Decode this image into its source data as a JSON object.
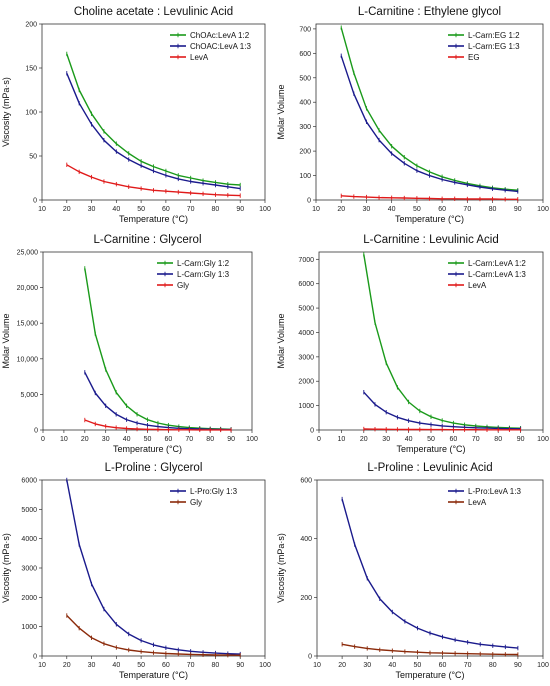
{
  "chart_data": [
    {
      "type": "line",
      "title": "Choline acetate : Levulinic Acid",
      "xlabel": "Temperature (°C)",
      "ylabel": "Viscosity (mPa·s)",
      "xlim": [
        10,
        100
      ],
      "ylim": [
        0,
        200
      ],
      "xticks": [
        10,
        20,
        30,
        40,
        50,
        60,
        70,
        80,
        90,
        100
      ],
      "yticks": [
        0,
        50,
        100,
        150,
        200
      ],
      "ytick_labels": [
        "0",
        "50",
        "100",
        "150",
        "200"
      ],
      "legend_position": "top-right",
      "x": [
        20,
        25,
        30,
        35,
        40,
        45,
        50,
        55,
        60,
        65,
        70,
        75,
        80,
        85,
        90
      ],
      "series": [
        {
          "name": "ChOAc:LevA 1:2",
          "color": "#1a9a1a",
          "values": [
            166,
            125,
            98,
            78,
            64,
            53,
            44,
            38,
            33,
            28,
            25,
            22,
            20,
            18,
            17
          ]
        },
        {
          "name": "ChOAC:LevA 1:3",
          "color": "#1a1a8c",
          "values": [
            144,
            110,
            86,
            68,
            55,
            46,
            39,
            33,
            28,
            24,
            21,
            19,
            17,
            15,
            13
          ]
        },
        {
          "name": "LevA",
          "color": "#e01a1a",
          "values": [
            40,
            32,
            26,
            21,
            18,
            15,
            13,
            11,
            10,
            9,
            8,
            7,
            6,
            5.5,
            5
          ]
        }
      ]
    },
    {
      "type": "line",
      "title": "L-Carnitine : Ethylene glycol",
      "xlabel": "Temperature (°C)",
      "ylabel": "Molar Volume",
      "xlim": [
        10,
        100
      ],
      "ylim": [
        0,
        720
      ],
      "xticks": [
        10,
        20,
        30,
        40,
        50,
        60,
        70,
        80,
        90,
        100
      ],
      "yticks": [
        0,
        100,
        200,
        300,
        400,
        500,
        600,
        700
      ],
      "ytick_labels": [
        "0",
        "100",
        "200",
        "300",
        "400",
        "500",
        "600",
        "700"
      ],
      "legend_position": "top-right",
      "x": [
        20,
        25,
        30,
        35,
        40,
        45,
        50,
        55,
        60,
        65,
        70,
        75,
        80,
        85,
        90
      ],
      "series": [
        {
          "name": "L-Carn:EG 1:2",
          "color": "#1a9a1a",
          "values": [
            705,
            520,
            375,
            285,
            220,
            175,
            140,
            115,
            95,
            80,
            68,
            58,
            50,
            44,
            40
          ]
        },
        {
          "name": "L-Carn:EG 1:3",
          "color": "#1a1a8c",
          "values": [
            590,
            435,
            320,
            245,
            190,
            150,
            120,
            100,
            84,
            72,
            62,
            53,
            46,
            40,
            35
          ]
        },
        {
          "name": "EG",
          "color": "#e01a1a",
          "values": [
            17,
            14,
            12,
            10,
            9,
            8,
            7,
            6,
            5,
            5,
            4,
            4,
            4,
            3,
            3
          ]
        }
      ]
    },
    {
      "type": "line",
      "title": "L-Carnitine : Glycerol",
      "xlabel": "Temperature (°C)",
      "ylabel": "Molar Volume",
      "xlim": [
        0,
        100
      ],
      "ylim": [
        0,
        25000
      ],
      "xticks": [
        0,
        10,
        20,
        30,
        40,
        50,
        60,
        70,
        80,
        90,
        100
      ],
      "yticks": [
        0,
        5000,
        10000,
        15000,
        20000,
        25000
      ],
      "ytick_labels": [
        "0",
        "5,000",
        "10,000",
        "15,000",
        "20,000",
        "25,000"
      ],
      "legend_position": "top-right",
      "x": [
        20,
        25,
        30,
        35,
        40,
        45,
        50,
        55,
        60,
        65,
        70,
        75,
        80,
        85,
        90
      ],
      "series": [
        {
          "name": "L-Carn:Gly 1:2",
          "color": "#1a9a1a",
          "values": [
            22700,
            13500,
            8500,
            5300,
            3400,
            2200,
            1450,
            980,
            680,
            480,
            340,
            250,
            185,
            140,
            105
          ]
        },
        {
          "name": "L-Carn:Gly 1:3",
          "color": "#1a1a8c",
          "values": [
            8100,
            5200,
            3400,
            2200,
            1450,
            980,
            680,
            480,
            340,
            245,
            180,
            135,
            100,
            78,
            60
          ]
        },
        {
          "name": "Gly",
          "color": "#e01a1a",
          "values": [
            1400,
            850,
            520,
            330,
            210,
            140,
            95,
            65,
            45,
            32,
            24,
            18,
            13,
            10,
            8
          ]
        }
      ]
    },
    {
      "type": "line",
      "title": "L-Carnitine : Levulinic Acid",
      "xlabel": "Temperature (°C)",
      "ylabel": "Molar Volume",
      "xlim": [
        0,
        100
      ],
      "ylim": [
        0,
        7300
      ],
      "xticks": [
        0,
        10,
        20,
        30,
        40,
        50,
        60,
        70,
        80,
        90,
        100
      ],
      "yticks": [
        0,
        1000,
        2000,
        3000,
        4000,
        5000,
        6000,
        7000
      ],
      "ytick_labels": [
        "0",
        "1000",
        "2000",
        "3000",
        "4000",
        "5000",
        "6000",
        "7000"
      ],
      "legend_position": "top-right",
      "x": [
        20,
        25,
        30,
        35,
        40,
        45,
        50,
        55,
        60,
        65,
        70,
        75,
        80,
        85,
        90
      ],
      "series": [
        {
          "name": "L-Carn:LevA 1:2",
          "color": "#1a9a1a",
          "values": [
            7200,
            4400,
            2750,
            1750,
            1150,
            780,
            540,
            390,
            285,
            215,
            165,
            130,
            105,
            88,
            75
          ]
        },
        {
          "name": "L-Carn:LevA 1:3",
          "color": "#1a1a8c",
          "values": [
            1550,
            1050,
            730,
            520,
            380,
            285,
            220,
            170,
            135,
            110,
            90,
            76,
            64,
            55,
            48
          ]
        },
        {
          "name": "LevA",
          "color": "#e01a1a",
          "values": [
            40,
            34,
            29,
            25,
            22,
            19,
            17,
            15,
            13,
            12,
            11,
            10,
            9,
            8,
            7
          ]
        }
      ]
    },
    {
      "type": "line",
      "title": "L-Proline : Glycerol",
      "xlabel": "Temperature (°C)",
      "ylabel": "Viscosity (mPa·s)",
      "xlim": [
        10,
        100
      ],
      "ylim": [
        0,
        6000
      ],
      "xticks": [
        10,
        20,
        30,
        40,
        50,
        60,
        70,
        80,
        90,
        100
      ],
      "yticks": [
        0,
        1000,
        2000,
        3000,
        4000,
        5000,
        6000
      ],
      "ytick_labels": [
        "0",
        "1000",
        "2000",
        "3000",
        "4000",
        "5000",
        "6000"
      ],
      "legend_position": "top-right",
      "x": [
        20,
        25,
        30,
        35,
        40,
        45,
        50,
        55,
        60,
        65,
        70,
        75,
        80,
        85,
        90
      ],
      "series": [
        {
          "name": "L-Pro:Gly 1:3",
          "color": "#1a1a8c",
          "values": [
            6000,
            3800,
            2450,
            1600,
            1080,
            750,
            530,
            380,
            280,
            210,
            160,
            125,
            100,
            80,
            65
          ]
        },
        {
          "name": "Gly",
          "color": "#8b2a0a",
          "values": [
            1380,
            950,
            620,
            420,
            290,
            205,
            150,
            112,
            86,
            67,
            53,
            43,
            35,
            29,
            25
          ]
        }
      ]
    },
    {
      "type": "line",
      "title": "L-Proline : Levulinic Acid",
      "xlabel": "Temperature (°C)",
      "ylabel": "Viscosity (mPa·s)",
      "xlim": [
        10,
        100
      ],
      "ylim": [
        0,
        600
      ],
      "xticks": [
        10,
        20,
        30,
        40,
        50,
        60,
        70,
        80,
        90,
        100
      ],
      "yticks": [
        0,
        200,
        400,
        600
      ],
      "ytick_labels": [
        "0",
        "200",
        "400",
        "600"
      ],
      "legend_position": "top-right",
      "x": [
        20,
        25,
        30,
        35,
        40,
        45,
        50,
        55,
        60,
        65,
        70,
        75,
        80,
        85,
        90
      ],
      "series": [
        {
          "name": "L-Pro:LevA 1:3",
          "color": "#1a1a8c",
          "values": [
            535,
            380,
            265,
            195,
            150,
            118,
            95,
            78,
            65,
            55,
            47,
            40,
            35,
            31,
            27
          ]
        },
        {
          "name": "LevA",
          "color": "#8b2a0a",
          "values": [
            40,
            32,
            26,
            21,
            18,
            15,
            13,
            11,
            10,
            9,
            8,
            7,
            6,
            5.5,
            5
          ]
        }
      ]
    }
  ]
}
